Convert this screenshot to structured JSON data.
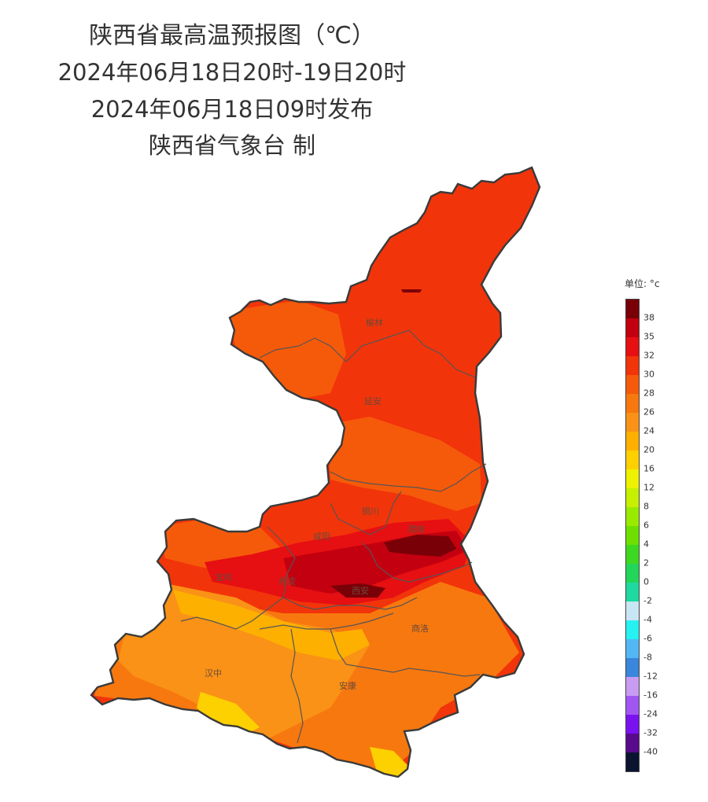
{
  "title": {
    "line1": "陕西省最高温预报图（℃）",
    "line2": "2024年06月18日20时-19日20时",
    "line3": "2024年06月18日09时发布",
    "line4": "陕西省气象台 制"
  },
  "legend": {
    "unit": "单位: °c",
    "colors": [
      "#7a0008",
      "#c30010",
      "#e60f12",
      "#f2340a",
      "#f55a0a",
      "#f7780f",
      "#f99216",
      "#fdb000",
      "#fdd000",
      "#eef100",
      "#c6f000",
      "#9aea00",
      "#6de000",
      "#3ed820",
      "#22d65a",
      "#1fdaa0",
      "#c9e6f5",
      "#26f2f2",
      "#51b7f5",
      "#3a86dc",
      "#c89cf2",
      "#a156f2",
      "#7a12f0",
      "#5a0a8c",
      "#0a1430"
    ],
    "labels": [
      "38",
      "35",
      "32",
      "30",
      "28",
      "26",
      "24",
      "20",
      "16",
      "12",
      "8",
      "6",
      "4",
      "2",
      "0",
      "-2",
      "-4",
      "-6",
      "-8",
      "-12",
      "-16",
      "-24",
      "-32",
      "-40"
    ]
  },
  "cities": [
    {
      "name": "榆林"
    },
    {
      "name": "延安"
    },
    {
      "name": "铜川"
    },
    {
      "name": "渭南"
    },
    {
      "name": "咸阳"
    },
    {
      "name": "宝鸡"
    },
    {
      "name": "杨凌"
    },
    {
      "name": "西安"
    },
    {
      "name": "商洛"
    },
    {
      "name": "汉中"
    },
    {
      "name": "安康"
    }
  ],
  "map_colors": {
    "base": "#f2340a",
    "warm": "#f55a0a",
    "orange": "#f7780f",
    "amber": "#f99216",
    "yellow": "#fdb000",
    "gold": "#fdd000",
    "hot": "#e60f12",
    "red": "#c30010",
    "dark": "#7a0008",
    "border": "#3a3a3a"
  }
}
